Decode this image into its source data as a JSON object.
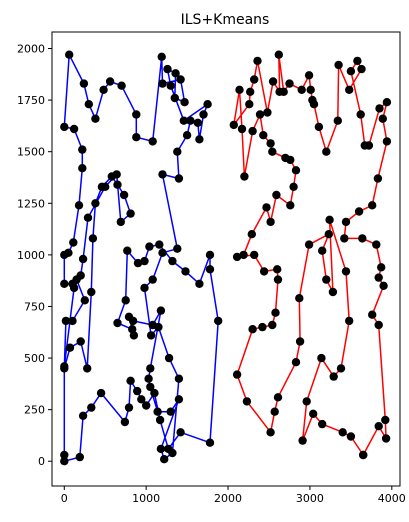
{
  "chart_data": {
    "type": "line",
    "title": "ILS+Kmeans",
    "xlabel": "",
    "ylabel": "",
    "xlim": [
      -150,
      4100
    ],
    "ylim": [
      -120,
      2080
    ],
    "xticks": [
      0,
      1000,
      2000,
      3000,
      4000
    ],
    "yticks": [
      0,
      250,
      500,
      750,
      1000,
      1250,
      1500,
      1750,
      2000
    ],
    "grid": false,
    "legend": "none",
    "series": [
      {
        "color": "#0000ff",
        "closed": true,
        "points": [
          [
            0,
            0
          ],
          [
            190,
            20
          ],
          [
            230,
            220
          ],
          [
            330,
            260
          ],
          [
            450,
            330
          ],
          [
            740,
            190
          ],
          [
            790,
            260
          ],
          [
            810,
            390
          ],
          [
            890,
            340
          ],
          [
            940,
            300
          ],
          [
            1000,
            270
          ],
          [
            1100,
            330
          ],
          [
            1170,
            200
          ],
          [
            1270,
            60
          ],
          [
            1420,
            140
          ],
          [
            1780,
            90
          ],
          [
            1880,
            680
          ],
          [
            1780,
            930
          ],
          [
            1780,
            1000
          ],
          [
            1650,
            860
          ],
          [
            1480,
            920
          ],
          [
            1320,
            970
          ],
          [
            1160,
            1050
          ],
          [
            1040,
            1040
          ],
          [
            980,
            970
          ],
          [
            900,
            960
          ],
          [
            770,
            1020
          ],
          [
            750,
            780
          ],
          [
            650,
            670
          ],
          [
            830,
            640
          ],
          [
            850,
            610
          ],
          [
            790,
            700
          ],
          [
            840,
            680
          ],
          [
            1080,
            660
          ],
          [
            1180,
            730
          ],
          [
            1050,
            450
          ],
          [
            1030,
            400
          ],
          [
            1050,
            360
          ],
          [
            1140,
            240
          ],
          [
            1300,
            240
          ],
          [
            1400,
            300
          ],
          [
            1180,
            60
          ],
          [
            1220,
            10
          ],
          [
            1320,
            40
          ],
          [
            1400,
            400
          ],
          [
            1280,
            500
          ],
          [
            1150,
            650
          ],
          [
            1060,
            610
          ],
          [
            980,
            840
          ],
          [
            1080,
            880
          ],
          [
            1200,
            1010
          ],
          [
            1380,
            1030
          ],
          [
            1200,
            1390
          ],
          [
            1400,
            1370
          ],
          [
            1380,
            1500
          ],
          [
            1500,
            1580
          ],
          [
            1540,
            1650
          ],
          [
            1630,
            1640
          ],
          [
            1650,
            1560
          ],
          [
            1700,
            1680
          ],
          [
            1750,
            1730
          ],
          [
            1460,
            1650
          ],
          [
            1300,
            1820
          ],
          [
            1260,
            1900
          ],
          [
            1360,
            1880
          ],
          [
            1350,
            1760
          ],
          [
            1470,
            1740
          ],
          [
            1420,
            1850
          ],
          [
            1200,
            1830
          ],
          [
            1190,
            1960
          ],
          [
            1080,
            1550
          ],
          [
            880,
            1570
          ],
          [
            880,
            1680
          ],
          [
            700,
            1820
          ],
          [
            560,
            1840
          ],
          [
            480,
            1800
          ],
          [
            380,
            1660
          ],
          [
            300,
            1730
          ],
          [
            240,
            1830
          ],
          [
            60,
            1970
          ],
          [
            0,
            1620
          ],
          [
            120,
            1610
          ],
          [
            220,
            1510
          ],
          [
            220,
            1420
          ],
          [
            180,
            1240
          ],
          [
            110,
            1060
          ],
          [
            50,
            1010
          ],
          [
            0,
            1000
          ],
          [
            0,
            860
          ],
          [
            100,
            860
          ],
          [
            150,
            880
          ],
          [
            250,
            780
          ],
          [
            100,
            680
          ],
          [
            20,
            680
          ],
          [
            0,
            450
          ],
          [
            70,
            550
          ],
          [
            200,
            580
          ],
          [
            280,
            450
          ],
          [
            330,
            820
          ],
          [
            350,
            1080
          ],
          [
            380,
            1250
          ],
          [
            460,
            1330
          ],
          [
            580,
            1380
          ],
          [
            650,
            1340
          ],
          [
            730,
            1290
          ],
          [
            810,
            1200
          ],
          [
            690,
            1160
          ],
          [
            640,
            1390
          ],
          [
            500,
            1330
          ],
          [
            290,
            1180
          ],
          [
            230,
            980
          ],
          [
            200,
            900
          ],
          [
            120,
            840
          ],
          [
            0,
            460
          ],
          [
            0,
            30
          ]
        ]
      },
      {
        "color": "#ff0000",
        "closed": true,
        "points": [
          [
            3650,
            30
          ],
          [
            3840,
            170
          ],
          [
            3930,
            110
          ],
          [
            3920,
            200
          ],
          [
            3840,
            660
          ],
          [
            3760,
            710
          ],
          [
            3900,
            850
          ],
          [
            3840,
            890
          ],
          [
            3870,
            940
          ],
          [
            3810,
            1050
          ],
          [
            3640,
            1080
          ],
          [
            3420,
            1080
          ],
          [
            3440,
            1160
          ],
          [
            3600,
            1210
          ],
          [
            3760,
            1240
          ],
          [
            3830,
            1370
          ],
          [
            3940,
            1550
          ],
          [
            3890,
            1660
          ],
          [
            3940,
            1740
          ],
          [
            3850,
            1710
          ],
          [
            3720,
            1530
          ],
          [
            3670,
            1530
          ],
          [
            3620,
            1680
          ],
          [
            3500,
            1890
          ],
          [
            3580,
            1940
          ],
          [
            3630,
            1900
          ],
          [
            3480,
            1800
          ],
          [
            3350,
            1920
          ],
          [
            3340,
            1650
          ],
          [
            3200,
            1500
          ],
          [
            3110,
            1620
          ],
          [
            3050,
            1730
          ],
          [
            3030,
            1750
          ],
          [
            3010,
            1800
          ],
          [
            2990,
            1870
          ],
          [
            2900,
            1800
          ],
          [
            2750,
            1830
          ],
          [
            2680,
            1790
          ],
          [
            2620,
            1970
          ],
          [
            2630,
            1790
          ],
          [
            2550,
            1840
          ],
          [
            2480,
            1690
          ],
          [
            2360,
            1940
          ],
          [
            2320,
            1850
          ],
          [
            2270,
            1790
          ],
          [
            2260,
            1730
          ],
          [
            2070,
            1630
          ],
          [
            2140,
            1800
          ],
          [
            2170,
            1610
          ],
          [
            2200,
            1380
          ],
          [
            2300,
            1600
          ],
          [
            2390,
            1680
          ],
          [
            2430,
            1580
          ],
          [
            2520,
            1540
          ],
          [
            2540,
            1500
          ],
          [
            2700,
            1470
          ],
          [
            2760,
            1460
          ],
          [
            2830,
            1410
          ],
          [
            2800,
            1330
          ],
          [
            2760,
            1240
          ],
          [
            2590,
            1290
          ],
          [
            2520,
            1160
          ],
          [
            2470,
            1230
          ],
          [
            2290,
            1100
          ],
          [
            2190,
            1000
          ],
          [
            2110,
            990
          ],
          [
            2320,
            1000
          ],
          [
            2440,
            920
          ],
          [
            2600,
            930
          ],
          [
            2610,
            880
          ],
          [
            2580,
            720
          ],
          [
            2540,
            660
          ],
          [
            2420,
            650
          ],
          [
            2300,
            640
          ],
          [
            2110,
            420
          ],
          [
            2230,
            290
          ],
          [
            2520,
            140
          ],
          [
            2570,
            240
          ],
          [
            2610,
            310
          ],
          [
            2830,
            480
          ],
          [
            2880,
            580
          ],
          [
            2870,
            790
          ],
          [
            2990,
            1050
          ],
          [
            3230,
            1100
          ],
          [
            3150,
            1020
          ],
          [
            3200,
            880
          ],
          [
            3280,
            820
          ],
          [
            3240,
            1170
          ],
          [
            3440,
            920
          ],
          [
            3480,
            680
          ],
          [
            3380,
            450
          ],
          [
            3290,
            410
          ],
          [
            3140,
            500
          ],
          [
            2960,
            290
          ],
          [
            2910,
            100
          ],
          [
            3040,
            230
          ],
          [
            3150,
            180
          ],
          [
            3400,
            140
          ],
          [
            3500,
            120
          ],
          [
            3650,
            30
          ]
        ]
      }
    ]
  }
}
